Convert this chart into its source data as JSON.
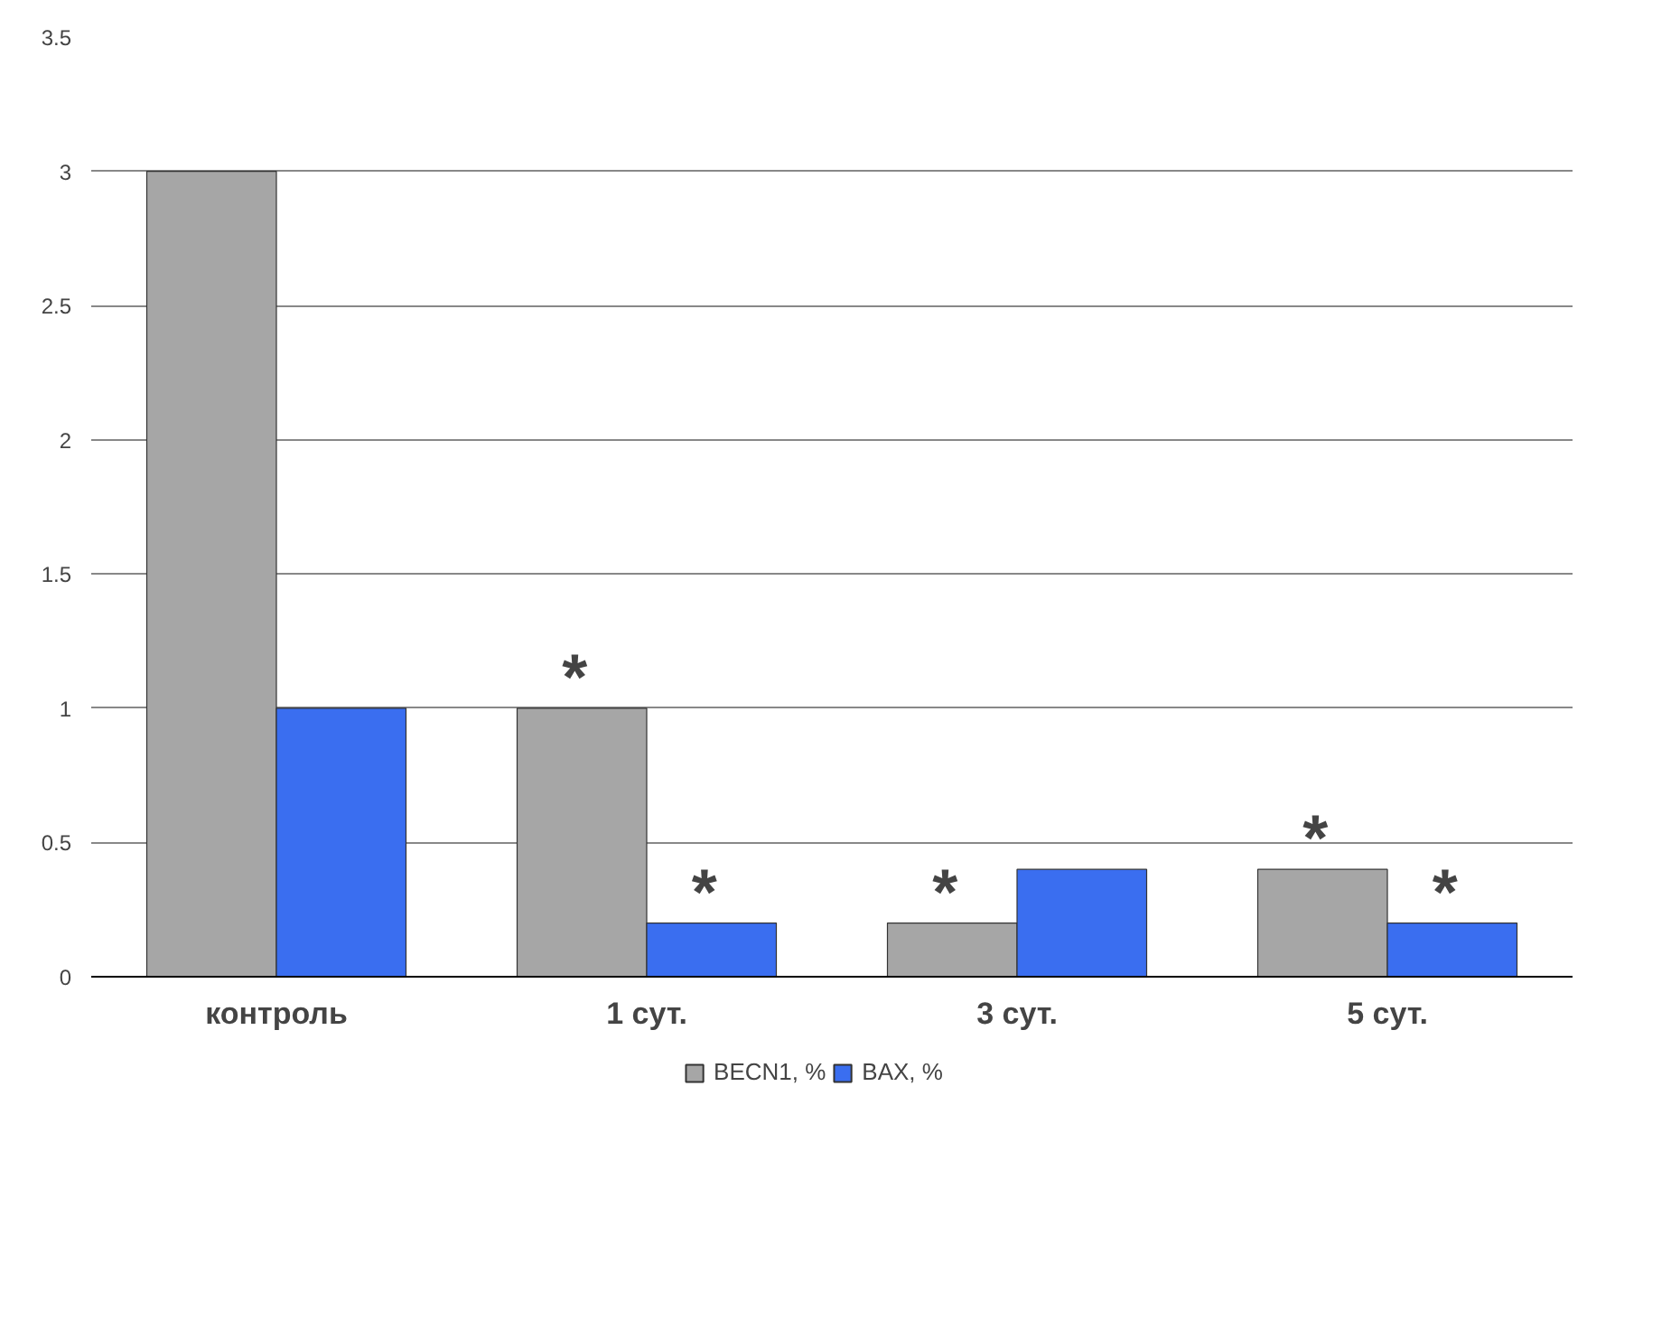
{
  "chart_data": {
    "type": "bar",
    "categories": [
      "контроль",
      "1 сут.",
      "3 сут.",
      "5 сут."
    ],
    "series": [
      {
        "name": "BECN1, %",
        "color": "#a6a6a6",
        "values": [
          3,
          1,
          0.2,
          0.4
        ]
      },
      {
        "name": "BAX, %",
        "color": "#3a6ef0",
        "values": [
          1,
          0.2,
          0.4,
          0.2
        ]
      }
    ],
    "ylim": [
      0,
      3.5
    ],
    "yticks": [
      0,
      0.5,
      1,
      1.5,
      2,
      2.5,
      3,
      3.5
    ],
    "grid": "y",
    "legend": "bottom",
    "annotations": [
      {
        "text": "*",
        "x": "1 сут.",
        "y": 1
      },
      {
        "text": "*",
        "x": "1 сут.",
        "y": 0.2
      },
      {
        "text": "*",
        "x": "3 сут.",
        "y": 0.2
      },
      {
        "text": "*",
        "x": "5 сут.",
        "y": 0.4
      },
      {
        "text": "*",
        "x": "5 сут.",
        "y": 0.2
      }
    ]
  }
}
